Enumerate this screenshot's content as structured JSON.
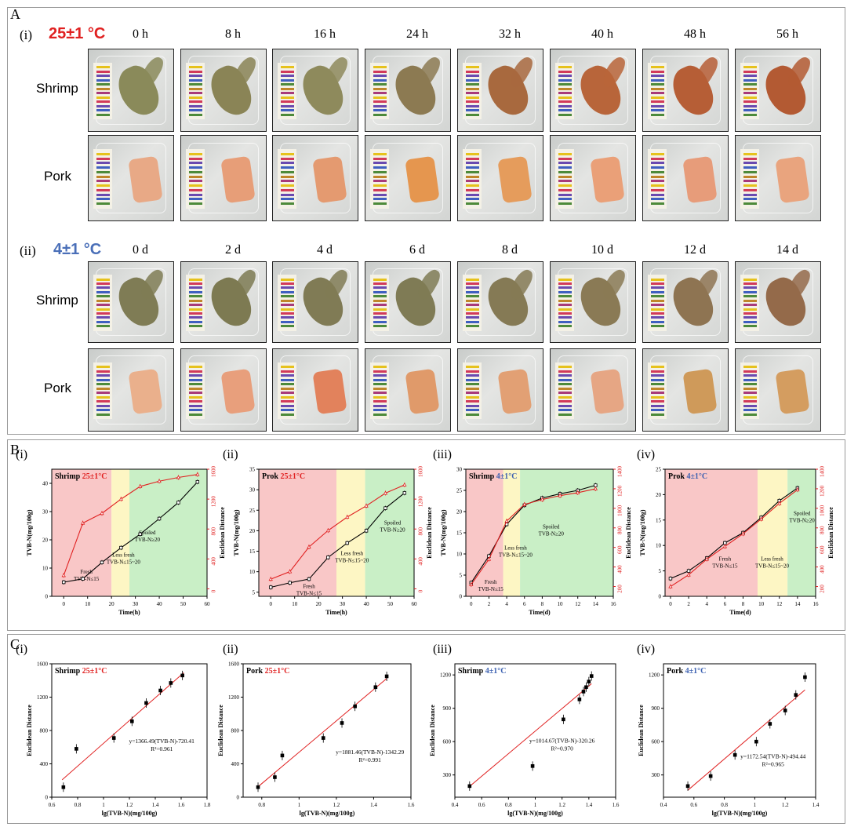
{
  "panels": {
    "A": "A",
    "B": "B",
    "C": "C"
  },
  "panelA": {
    "sections": [
      {
        "roman": "(i)",
        "temp": "25±1 °C",
        "temp_color": "#e02020",
        "times": [
          "0 h",
          "8 h",
          "16 h",
          "24 h",
          "32 h",
          "40 h",
          "48 h",
          "56 h"
        ]
      },
      {
        "roman": "(ii)",
        "temp": "4±1 °C",
        "temp_color": "#4a6fb8",
        "times": [
          "0 d",
          "2 d",
          "4 d",
          "6 d",
          "8 d",
          "10 d",
          "12 d",
          "14 d"
        ]
      }
    ],
    "row_labels": [
      "Shrimp",
      "Pork"
    ],
    "strip_colors": [
      "#e6c21c",
      "#d23a5a",
      "#6a4ab0",
      "#3f5fc0",
      "#4d8a3a",
      "#c0862a",
      "#a83a7a"
    ],
    "shrimp_colors_25": [
      "#8a8a5a",
      "#8a8456",
      "#8e8a5c",
      "#8c7a52",
      "#a8693e",
      "#b8653a",
      "#b65e36",
      "#b35a33"
    ],
    "pork_colors_25": [
      "#e8a986",
      "#e79e78",
      "#e49a70",
      "#e5964f",
      "#e59c5c",
      "#eaa078",
      "#e79c7a",
      "#e9a47e"
    ],
    "shrimp_colors_4": [
      "#7f7c55",
      "#7d7a52",
      "#807b55",
      "#7f7b55",
      "#857a55",
      "#8a7a55",
      "#8e7452",
      "#946a4a"
    ],
    "pork_colors_4": [
      "#eab08c",
      "#e89f7c",
      "#e2825c",
      "#e09a6a",
      "#e2a074",
      "#e6a684",
      "#cf9a5a",
      "#d49d60"
    ]
  },
  "chart_data": [
    {
      "panel": "B",
      "roman": "(i)",
      "type": "line",
      "title_prefix": "Shrimp",
      "title_temp": "25±1°C",
      "xlabel": "Time(h)",
      "ylabel": "TVB-N(mg/100g)",
      "y2label": "Euclidean Distance",
      "xlim": [
        -5,
        60
      ],
      "xticks": [
        0,
        10,
        20,
        30,
        40,
        50,
        60
      ],
      "ylim": [
        0,
        45
      ],
      "yticks": [
        0,
        10,
        20,
        30,
        40
      ],
      "y2lim": [
        -100,
        1600
      ],
      "y2ticks": [
        0,
        400,
        800,
        1200,
        1600
      ],
      "zones": [
        {
          "from": -5,
          "to": 20,
          "color": "#f9c7c7"
        },
        {
          "from": 20,
          "to": 27.5,
          "color": "#fdf6c4"
        },
        {
          "from": 27.5,
          "to": 60,
          "color": "#c9efc6"
        }
      ],
      "zone_labels": [
        {
          "lines": [
            "Fresh",
            "TVB-N≤15"
          ],
          "x": 9.5,
          "y": 8
        },
        {
          "lines": [
            "Less fresh",
            "TVB-N≤15~20"
          ],
          "x": 25,
          "y": 14
        },
        {
          "lines": [
            "Spoiled",
            "TVB-N≥20"
          ],
          "x": 35,
          "y": 22
        }
      ],
      "x": [
        0,
        8,
        16,
        24,
        32,
        40,
        48,
        56
      ],
      "series": [
        {
          "axis": "left",
          "color": "#000000",
          "values": [
            5.0,
            6.2,
            12.0,
            17.2,
            22.0,
            27.5,
            33.2,
            40.5
          ]
        },
        {
          "axis": "right",
          "color": "#e02020",
          "values": [
            180,
            880,
            1010,
            1200,
            1370,
            1440,
            1490,
            1530
          ]
        }
      ]
    },
    {
      "panel": "B",
      "roman": "(ii)",
      "type": "line",
      "title_prefix": "Prok",
      "title_temp": "25±1°C",
      "xlabel": "Time(h)",
      "ylabel": "TVB-N(mg/100g)",
      "y2label": "Euclidean Distance",
      "xlim": [
        -5,
        60
      ],
      "xticks": [
        0,
        10,
        20,
        30,
        40,
        50,
        60
      ],
      "ylim": [
        4,
        35
      ],
      "yticks": [
        5,
        10,
        15,
        20,
        25,
        30,
        35
      ],
      "y2lim": [
        -100,
        1600
      ],
      "y2ticks": [
        0,
        400,
        800,
        1200,
        1600
      ],
      "zones": [
        {
          "from": -5,
          "to": 27.5,
          "color": "#f9c7c7"
        },
        {
          "from": 27.5,
          "to": 39.5,
          "color": "#fdf6c4"
        },
        {
          "from": 39.5,
          "to": 60,
          "color": "#c9efc6"
        }
      ],
      "zone_labels": [
        {
          "lines": [
            "Fresh",
            "TVB-N≤15"
          ],
          "x": 16,
          "y": 6
        },
        {
          "lines": [
            "Less fresh",
            "TVB-N≤15~20"
          ],
          "x": 34,
          "y": 14
        },
        {
          "lines": [
            "Spoiled",
            "TVB-N≥20"
          ],
          "x": 51,
          "y": 21.5
        }
      ],
      "x": [
        0,
        8,
        16,
        24,
        32,
        40,
        48,
        56
      ],
      "series": [
        {
          "axis": "left",
          "color": "#000000",
          "values": [
            6.2,
            7.3,
            8.2,
            13.5,
            17.0,
            20.0,
            25.5,
            29.2
          ]
        },
        {
          "axis": "right",
          "color": "#e02020",
          "values": [
            130,
            230,
            560,
            780,
            960,
            1110,
            1280,
            1390
          ]
        }
      ]
    },
    {
      "panel": "B",
      "roman": "(iii)",
      "type": "line",
      "title_prefix": "Shrimp",
      "title_temp": "4±1°C",
      "xlabel": "Time(d)",
      "ylabel": "TVB-N(mg/100g)",
      "y2label": "Euclidean Distance",
      "xlim": [
        -0.6,
        16
      ],
      "xticks": [
        0,
        2,
        4,
        6,
        8,
        10,
        12,
        14,
        16
      ],
      "ylim": [
        0,
        30
      ],
      "yticks": [
        0,
        5,
        10,
        15,
        20,
        25,
        30
      ],
      "y2lim": [
        100,
        1400
      ],
      "y2ticks": [
        200,
        400,
        600,
        800,
        1000,
        1200,
        1400
      ],
      "zones": [
        {
          "from": -0.6,
          "to": 3.6,
          "color": "#f9c7c7"
        },
        {
          "from": 3.6,
          "to": 5.5,
          "color": "#fdf6c4"
        },
        {
          "from": 5.5,
          "to": 16,
          "color": "#c9efc6"
        }
      ],
      "zone_labels": [
        {
          "lines": [
            "Fresh",
            "TVB-N≤15"
          ],
          "x": 2.2,
          "y": 3
        },
        {
          "lines": [
            "Less fresh",
            "TVB-N≤15~20"
          ],
          "x": 5,
          "y": 11
        },
        {
          "lines": [
            "Spoiled",
            "TVB-N≥20"
          ],
          "x": 9,
          "y": 16
        }
      ],
      "x": [
        0,
        2,
        4,
        6,
        8,
        10,
        12,
        14
      ],
      "series": [
        {
          "axis": "left",
          "color": "#000000",
          "values": [
            3.2,
            9.5,
            17.0,
            21.5,
            23.2,
            24.2,
            25.0,
            26.2
          ]
        },
        {
          "axis": "right",
          "color": "#e02020",
          "values": [
            220,
            480,
            870,
            1040,
            1090,
            1130,
            1160,
            1200
          ]
        }
      ]
    },
    {
      "panel": "B",
      "roman": "(iv)",
      "type": "line",
      "title_prefix": "Prok",
      "title_temp": "4±1°C",
      "xlabel": "Time(d)",
      "ylabel": "TVB-N(mg/100g)",
      "y2label": "Euclidean Distance",
      "xlim": [
        -0.6,
        16
      ],
      "xticks": [
        0,
        2,
        4,
        6,
        8,
        10,
        12,
        14,
        16
      ],
      "ylim": [
        0,
        25
      ],
      "yticks": [
        0,
        5,
        10,
        15,
        20,
        25
      ],
      "y2lim": [
        100,
        1400
      ],
      "y2ticks": [
        200,
        400,
        600,
        800,
        1000,
        1200,
        1400
      ],
      "zones": [
        {
          "from": -0.6,
          "to": 9.6,
          "color": "#f9c7c7"
        },
        {
          "from": 9.6,
          "to": 12.9,
          "color": "#fdf6c4"
        },
        {
          "from": 12.9,
          "to": 16,
          "color": "#c9efc6"
        }
      ],
      "zone_labels": [
        {
          "lines": [
            "Fresh",
            "TVB-N≤15"
          ],
          "x": 6,
          "y": 7
        },
        {
          "lines": [
            "Less fresh",
            "TVB-N≤15~20"
          ],
          "x": 11.2,
          "y": 7
        },
        {
          "lines": [
            "Spoiled",
            "TVB-N≥20"
          ],
          "x": 14.5,
          "y": 16
        }
      ],
      "x": [
        0,
        2,
        4,
        6,
        8,
        10,
        12,
        14
      ],
      "series": [
        {
          "axis": "left",
          "color": "#000000",
          "values": [
            3.5,
            5.0,
            7.5,
            10.5,
            12.5,
            15.5,
            18.8,
            21.3
          ]
        },
        {
          "axis": "right",
          "color": "#e02020",
          "values": [
            200,
            320,
            480,
            610,
            740,
            890,
            1050,
            1190
          ]
        }
      ]
    },
    {
      "panel": "C",
      "roman": "(i)",
      "type": "scatter",
      "title_prefix": "Shrimp",
      "title_temp": "25±1°C",
      "xlabel": "lg(TVB-N)(mg/100g)",
      "ylabel": "Euclidean Distance",
      "xlim": [
        0.6,
        1.8
      ],
      "xticks": [
        0.6,
        0.8,
        1.0,
        1.2,
        1.4,
        1.6,
        1.8
      ],
      "ylim": [
        0,
        1600
      ],
      "yticks": [
        0,
        400,
        800,
        1200,
        1600
      ],
      "points_x": [
        0.69,
        0.79,
        1.08,
        1.22,
        1.33,
        1.44,
        1.52,
        1.61
      ],
      "points_y": [
        120,
        580,
        710,
        910,
        1130,
        1280,
        1370,
        1460
      ],
      "fit": {
        "slope": 1366.49,
        "intercept": -720.41,
        "from": 0.68,
        "to": 1.62
      },
      "equation": "y=1366.49(TVB-N)-720.41",
      "r2": "R²=0.961",
      "eq_pos": [
        1.45,
        650
      ]
    },
    {
      "panel": "C",
      "roman": "(ii)",
      "type": "scatter",
      "title_prefix": "Pork",
      "title_temp": "25±1°C",
      "xlabel": "lg(TVB-N)(mg/100g)",
      "ylabel": "Euclidean Distance",
      "xlim": [
        0.7,
        1.6
      ],
      "xticks": [
        0.8,
        1.0,
        1.2,
        1.4,
        1.6
      ],
      "ylim": [
        0,
        1600
      ],
      "yticks": [
        0,
        400,
        800,
        1200,
        1600
      ],
      "points_x": [
        0.78,
        0.87,
        0.91,
        1.13,
        1.23,
        1.3,
        1.41,
        1.47
      ],
      "points_y": [
        120,
        240,
        500,
        710,
        890,
        1090,
        1320,
        1450
      ],
      "fit": {
        "slope": 1881.46,
        "intercept": -1342.29,
        "from": 0.78,
        "to": 1.47
      },
      "equation": "y=1881.46(TVB-N)-1342.29",
      "r2": "R²=0.991",
      "eq_pos": [
        1.38,
        520
      ]
    },
    {
      "panel": "C",
      "roman": "(iii)",
      "type": "scatter",
      "title_prefix": "Shrimp",
      "title_temp": "4±1°C",
      "xlabel": "lg(TVB-N)(mg/100g)",
      "ylabel": "Euclidean Distance",
      "xlim": [
        0.4,
        1.6
      ],
      "xticks": [
        0.4,
        0.6,
        0.8,
        1.0,
        1.2,
        1.4,
        1.6
      ],
      "ylim": [
        100,
        1300
      ],
      "yticks": [
        300,
        600,
        900,
        1200
      ],
      "points_x": [
        0.51,
        0.98,
        1.21,
        1.33,
        1.36,
        1.38,
        1.4,
        1.42
      ],
      "points_y": [
        200,
        380,
        800,
        980,
        1050,
        1090,
        1140,
        1190
      ],
      "fit": {
        "slope": 1014.67,
        "intercept": -320.26,
        "from": 0.51,
        "to": 1.42
      },
      "equation": "y=1014.67(TVB-N)-320.26",
      "r2": "R²=0.970",
      "eq_pos": [
        1.2,
        590
      ]
    },
    {
      "panel": "C",
      "roman": "(iv)",
      "type": "scatter",
      "title_prefix": "Pork",
      "title_temp": "4±1°C",
      "xlabel": "lg(TVB-N)(mg/100g)",
      "ylabel": "Euclidean Distance",
      "xlim": [
        0.4,
        1.4
      ],
      "xticks": [
        0.4,
        0.6,
        0.8,
        1.0,
        1.2,
        1.4
      ],
      "ylim": [
        100,
        1300
      ],
      "yticks": [
        300,
        600,
        900,
        1200
      ],
      "points_x": [
        0.56,
        0.71,
        0.87,
        1.01,
        1.1,
        1.2,
        1.27,
        1.33
      ],
      "points_y": [
        200,
        290,
        480,
        600,
        760,
        880,
        1020,
        1180
      ],
      "fit": {
        "slope": 1172.54,
        "intercept": -494.44,
        "from": 0.56,
        "to": 1.33
      },
      "equation": "y=1172.54(TVB-N)-494.44",
      "r2": "R²=0.965",
      "eq_pos": [
        1.12,
        450
      ]
    }
  ]
}
